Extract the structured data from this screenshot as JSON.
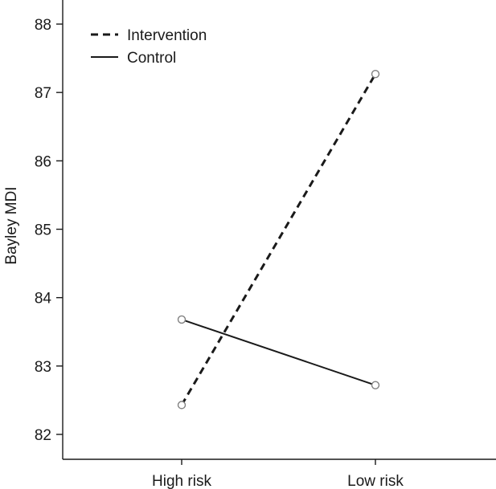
{
  "chart_data": {
    "type": "line",
    "title": "",
    "xlabel": "",
    "ylabel": "Bayley MDI",
    "categories": [
      "High risk",
      "Low risk"
    ],
    "ylim": [
      82,
      88
    ],
    "yticks": [
      82,
      83,
      84,
      85,
      86,
      87,
      88
    ],
    "grid": false,
    "legend_position": "top-left",
    "series": [
      {
        "name": "Intervention",
        "values": [
          82.43,
          87.27
        ],
        "line_style": "dashed",
        "color": "#1a1a1a"
      },
      {
        "name": "Control",
        "values": [
          83.68,
          82.72
        ],
        "line_style": "solid",
        "color": "#1a1a1a"
      }
    ],
    "marker": {
      "shape": "open-circle",
      "color": "#808080"
    }
  }
}
